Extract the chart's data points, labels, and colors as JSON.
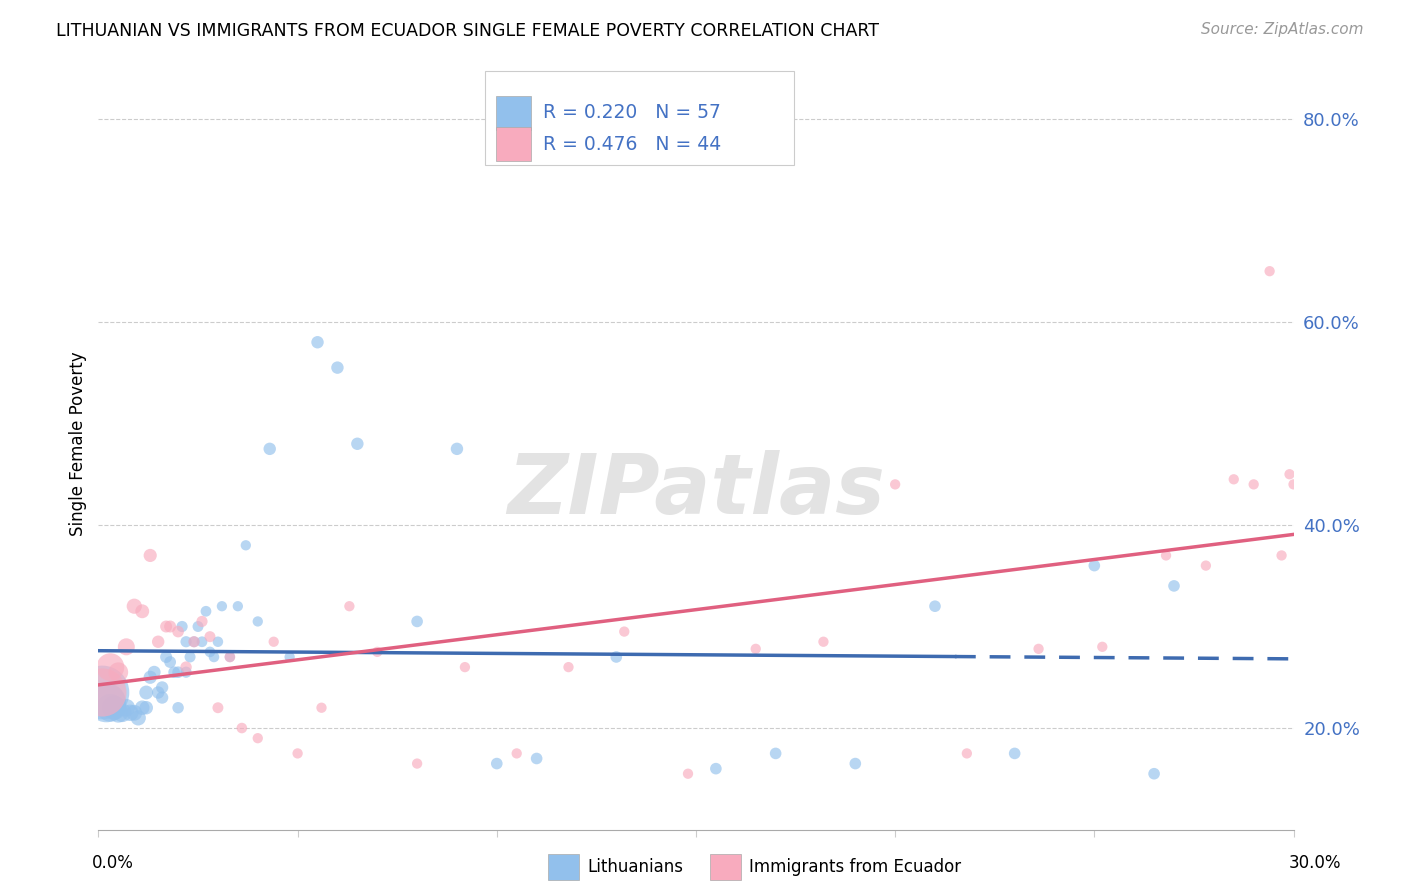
{
  "title": "LITHUANIAN VS IMMIGRANTS FROM ECUADOR SINGLE FEMALE POVERTY CORRELATION CHART",
  "source": "Source: ZipAtlas.com",
  "ylabel": "Single Female Poverty",
  "yticks": [
    0.2,
    0.4,
    0.6,
    0.8
  ],
  "ytick_labels": [
    "20.0%",
    "40.0%",
    "60.0%",
    "80.0%"
  ],
  "xlim": [
    0.0,
    0.3
  ],
  "ylim": [
    0.1,
    0.86
  ],
  "R_blue": 0.22,
  "N_blue": 57,
  "R_pink": 0.476,
  "N_pink": 44,
  "blue_color": "#92C0EC",
  "pink_color": "#F8ABBE",
  "blue_line_color": "#3E6BB0",
  "pink_line_color": "#E06080",
  "text_color_blue": "#4472C4",
  "legend_label_blue": "Lithuanians",
  "legend_label_pink": "Immigrants from Ecuador",
  "blue_scatter_x": [
    0.001,
    0.002,
    0.003,
    0.004,
    0.005,
    0.006,
    0.007,
    0.008,
    0.009,
    0.01,
    0.011,
    0.012,
    0.012,
    0.013,
    0.014,
    0.015,
    0.016,
    0.016,
    0.017,
    0.018,
    0.019,
    0.02,
    0.02,
    0.021,
    0.022,
    0.022,
    0.023,
    0.024,
    0.025,
    0.026,
    0.027,
    0.028,
    0.029,
    0.03,
    0.031,
    0.033,
    0.035,
    0.037,
    0.04,
    0.043,
    0.048,
    0.055,
    0.06,
    0.065,
    0.08,
    0.09,
    0.1,
    0.11,
    0.13,
    0.155,
    0.17,
    0.19,
    0.21,
    0.23,
    0.25,
    0.265,
    0.27
  ],
  "blue_scatter_y": [
    0.235,
    0.225,
    0.22,
    0.22,
    0.215,
    0.215,
    0.22,
    0.215,
    0.215,
    0.21,
    0.22,
    0.235,
    0.22,
    0.25,
    0.255,
    0.235,
    0.24,
    0.23,
    0.27,
    0.265,
    0.255,
    0.255,
    0.22,
    0.3,
    0.285,
    0.255,
    0.27,
    0.285,
    0.3,
    0.285,
    0.315,
    0.275,
    0.27,
    0.285,
    0.32,
    0.27,
    0.32,
    0.38,
    0.305,
    0.475,
    0.27,
    0.58,
    0.555,
    0.48,
    0.305,
    0.475,
    0.165,
    0.17,
    0.27,
    0.16,
    0.175,
    0.165,
    0.32,
    0.175,
    0.36,
    0.155,
    0.34
  ],
  "blue_scatter_sizes": [
    1500,
    800,
    400,
    300,
    200,
    180,
    160,
    140,
    130,
    120,
    110,
    100,
    95,
    90,
    85,
    80,
    78,
    78,
    75,
    72,
    70,
    70,
    68,
    65,
    65,
    65,
    63,
    62,
    62,
    60,
    60,
    58,
    58,
    57,
    55,
    55,
    55,
    55,
    55,
    80,
    55,
    80,
    80,
    80,
    70,
    80,
    70,
    70,
    70,
    70,
    70,
    70,
    70,
    70,
    70,
    70,
    70
  ],
  "pink_scatter_x": [
    0.001,
    0.003,
    0.005,
    0.007,
    0.009,
    0.011,
    0.013,
    0.015,
    0.017,
    0.018,
    0.02,
    0.022,
    0.024,
    0.026,
    0.028,
    0.03,
    0.033,
    0.036,
    0.04,
    0.044,
    0.05,
    0.056,
    0.063,
    0.07,
    0.08,
    0.092,
    0.105,
    0.118,
    0.132,
    0.148,
    0.165,
    0.182,
    0.2,
    0.218,
    0.236,
    0.252,
    0.268,
    0.278,
    0.285,
    0.29,
    0.294,
    0.297,
    0.299,
    0.3
  ],
  "pink_scatter_y": [
    0.235,
    0.26,
    0.255,
    0.28,
    0.32,
    0.315,
    0.37,
    0.285,
    0.3,
    0.3,
    0.295,
    0.26,
    0.285,
    0.305,
    0.29,
    0.22,
    0.27,
    0.2,
    0.19,
    0.285,
    0.175,
    0.22,
    0.32,
    0.275,
    0.165,
    0.26,
    0.175,
    0.26,
    0.295,
    0.155,
    0.278,
    0.285,
    0.44,
    0.175,
    0.278,
    0.28,
    0.37,
    0.36,
    0.445,
    0.44,
    0.65,
    0.37,
    0.45,
    0.44
  ],
  "pink_scatter_sizes": [
    1200,
    400,
    200,
    150,
    120,
    100,
    90,
    80,
    75,
    75,
    70,
    68,
    65,
    65,
    63,
    62,
    60,
    58,
    55,
    55,
    55,
    55,
    55,
    55,
    55,
    55,
    55,
    55,
    55,
    55,
    55,
    55,
    55,
    55,
    55,
    55,
    55,
    55,
    55,
    55,
    55,
    55,
    55,
    55
  ],
  "watermark": "ZIPatlas",
  "blue_trend_solid_end": 0.215,
  "xtick_positions": [
    0.0,
    0.05,
    0.1,
    0.15,
    0.2,
    0.25,
    0.3
  ]
}
